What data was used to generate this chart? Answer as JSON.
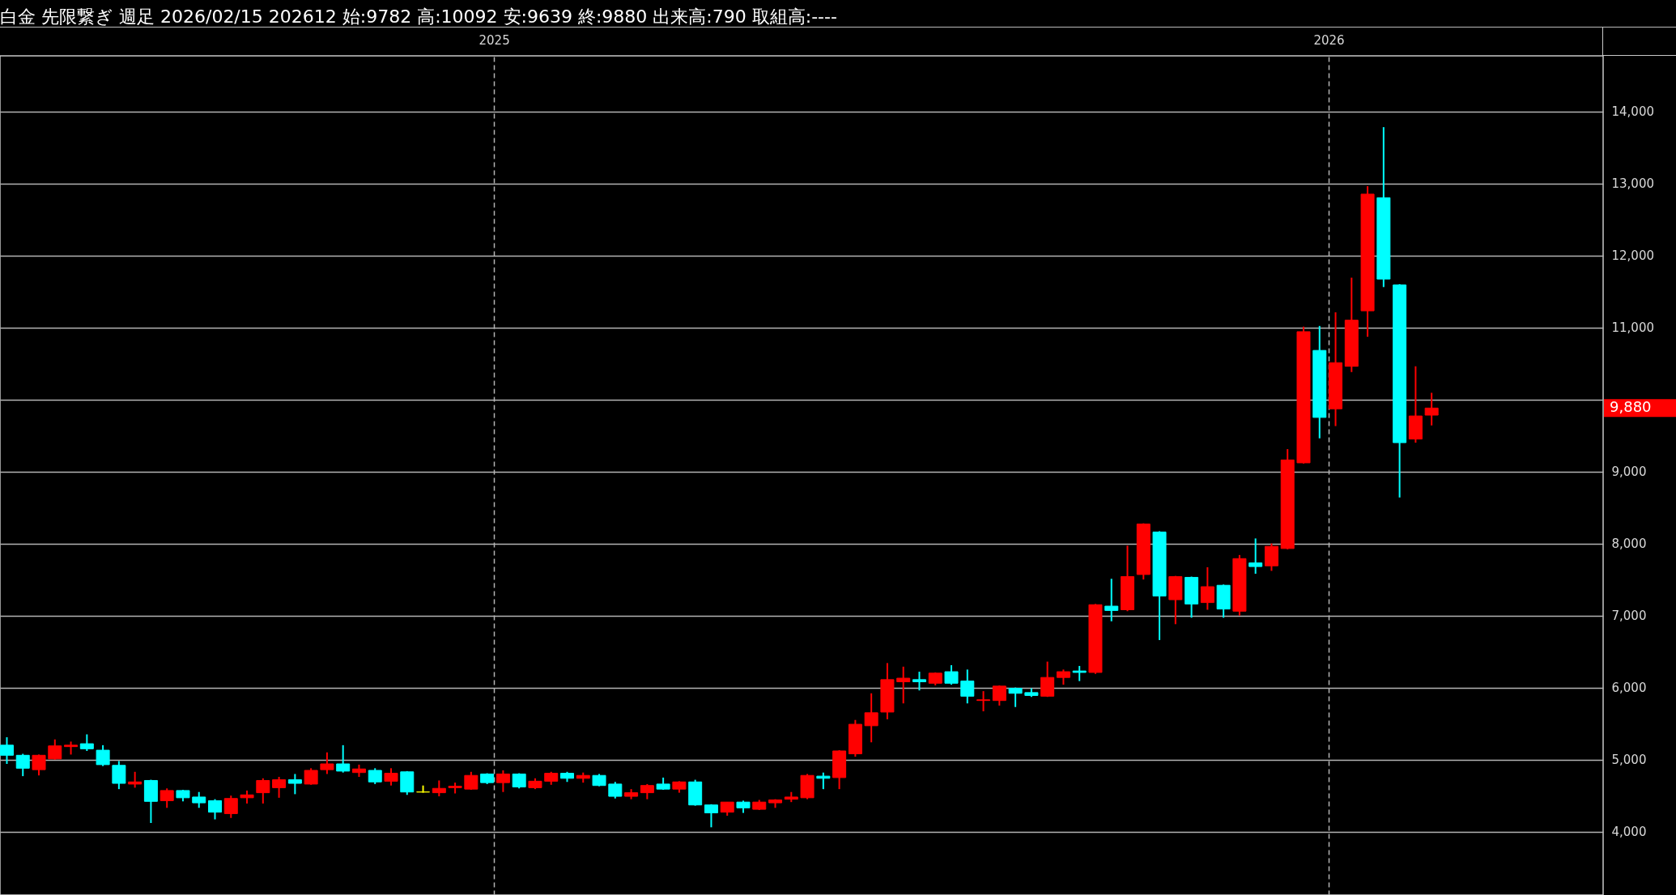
{
  "chart_data": {
    "type": "candlestick",
    "title": "白金 先限繋ぎ 週足 2026/02/15 202612 始:9782 高:10092 安:9639 終:9880 出来高:790 取組高:----",
    "x": [
      "2024-06-02",
      "2024-06-09",
      "2024-06-16",
      "2024-06-23",
      "2024-06-30",
      "2024-07-07",
      "2024-07-14",
      "2024-07-21",
      "2024-07-28",
      "2024-08-04",
      "2024-08-11",
      "2024-08-18",
      "2024-08-25",
      "2024-09-01",
      "2024-09-08",
      "2024-09-15",
      "2024-09-22",
      "2024-09-29",
      "2024-10-06",
      "2024-10-13",
      "2024-10-20",
      "2024-10-27",
      "2024-11-03",
      "2024-11-10",
      "2024-11-17",
      "2024-11-24",
      "2024-12-01",
      "2024-12-08",
      "2024-12-15",
      "2024-12-22",
      "2024-12-29",
      "2025-01-05",
      "2025-01-12",
      "2025-01-19",
      "2025-01-26",
      "2025-02-02",
      "2025-02-09",
      "2025-02-16",
      "2025-02-23",
      "2025-03-02",
      "2025-03-09",
      "2025-03-16",
      "2025-03-23",
      "2025-03-30",
      "2025-04-06",
      "2025-04-13",
      "2025-04-20",
      "2025-04-27",
      "2025-05-04",
      "2025-05-11",
      "2025-05-18",
      "2025-05-25",
      "2025-06-01",
      "2025-06-08",
      "2025-06-15",
      "2025-06-22",
      "2025-06-29",
      "2025-07-06",
      "2025-07-13",
      "2025-07-20",
      "2025-07-27",
      "2025-08-03",
      "2025-08-10",
      "2025-08-17",
      "2025-08-24",
      "2025-08-31",
      "2025-09-07",
      "2025-09-14",
      "2025-09-21",
      "2025-09-28",
      "2025-10-05",
      "2025-10-12",
      "2025-10-19",
      "2025-10-26",
      "2025-11-02",
      "2025-11-09",
      "2025-11-16",
      "2025-11-23",
      "2025-11-30",
      "2025-12-07",
      "2025-12-14",
      "2025-12-21",
      "2025-12-28",
      "2026-01-04",
      "2026-01-11",
      "2026-01-18",
      "2026-01-25",
      "2026-02-01",
      "2026-02-08",
      "2026-02-15"
    ],
    "ohlc": [
      [
        5200,
        5310,
        4940,
        5060
      ],
      [
        5060,
        5080,
        4770,
        4880
      ],
      [
        4860,
        5070,
        4780,
        5060
      ],
      [
        5010,
        5280,
        5000,
        5190
      ],
      [
        5180,
        5250,
        5070,
        5200
      ],
      [
        5220,
        5350,
        5120,
        5150
      ],
      [
        5130,
        5200,
        4910,
        4930
      ],
      [
        4920,
        4980,
        4590,
        4670
      ],
      [
        4660,
        4830,
        4610,
        4690
      ],
      [
        4710,
        4720,
        4120,
        4420
      ],
      [
        4430,
        4600,
        4330,
        4570
      ],
      [
        4570,
        4580,
        4420,
        4470
      ],
      [
        4480,
        4550,
        4330,
        4400
      ],
      [
        4430,
        4450,
        4170,
        4270
      ],
      [
        4250,
        4500,
        4190,
        4460
      ],
      [
        4470,
        4570,
        4390,
        4510
      ],
      [
        4540,
        4740,
        4390,
        4710
      ],
      [
        4610,
        4760,
        4470,
        4720
      ],
      [
        4720,
        4800,
        4520,
        4670
      ],
      [
        4660,
        4880,
        4650,
        4850
      ],
      [
        4860,
        5100,
        4800,
        4940
      ],
      [
        4940,
        5200,
        4820,
        4840
      ],
      [
        4820,
        4930,
        4760,
        4870
      ],
      [
        4850,
        4880,
        4660,
        4690
      ],
      [
        4700,
        4880,
        4640,
        4810
      ],
      [
        4830,
        4840,
        4510,
        4550
      ],
      [
        4550,
        4640,
        4540,
        4550
      ],
      [
        4540,
        4710,
        4490,
        4600
      ],
      [
        4610,
        4680,
        4530,
        4630
      ],
      [
        4590,
        4830,
        4580,
        4780
      ],
      [
        4800,
        4810,
        4660,
        4680
      ],
      [
        4680,
        4850,
        4550,
        4800
      ],
      [
        4800,
        4810,
        4600,
        4620
      ],
      [
        4610,
        4740,
        4590,
        4700
      ],
      [
        4700,
        4830,
        4650,
        4810
      ],
      [
        4810,
        4830,
        4690,
        4740
      ],
      [
        4740,
        4820,
        4680,
        4780
      ],
      [
        4780,
        4800,
        4630,
        4640
      ],
      [
        4660,
        4690,
        4460,
        4490
      ],
      [
        4490,
        4590,
        4450,
        4540
      ],
      [
        4540,
        4660,
        4450,
        4640
      ],
      [
        4660,
        4750,
        4580,
        4590
      ],
      [
        4590,
        4700,
        4540,
        4690
      ],
      [
        4690,
        4720,
        4360,
        4370
      ],
      [
        4370,
        4380,
        4060,
        4260
      ],
      [
        4270,
        4410,
        4220,
        4410
      ],
      [
        4410,
        4430,
        4260,
        4330
      ],
      [
        4310,
        4440,
        4300,
        4410
      ],
      [
        4400,
        4450,
        4330,
        4440
      ],
      [
        4450,
        4550,
        4410,
        4480
      ],
      [
        4470,
        4800,
        4450,
        4780
      ],
      [
        4770,
        4820,
        4590,
        4740
      ],
      [
        4750,
        5130,
        4590,
        5120
      ],
      [
        5080,
        5550,
        5040,
        5490
      ],
      [
        5470,
        5920,
        5240,
        5650
      ],
      [
        5660,
        6340,
        5560,
        6110
      ],
      [
        6080,
        6290,
        5780,
        6130
      ],
      [
        6110,
        6220,
        5960,
        6080
      ],
      [
        6060,
        6210,
        6030,
        6200
      ],
      [
        6220,
        6310,
        6040,
        6060
      ],
      [
        6090,
        6250,
        5780,
        5880
      ],
      [
        5820,
        5950,
        5670,
        5830
      ],
      [
        5820,
        6030,
        5750,
        6020
      ],
      [
        5990,
        6000,
        5730,
        5920
      ],
      [
        5930,
        5990,
        5870,
        5890
      ],
      [
        5880,
        6360,
        5870,
        6140
      ],
      [
        6140,
        6250,
        6040,
        6220
      ],
      [
        6230,
        6300,
        6090,
        6210
      ],
      [
        6210,
        7160,
        6190,
        7150
      ],
      [
        7130,
        7510,
        6920,
        7070
      ],
      [
        7080,
        7970,
        7060,
        7540
      ],
      [
        7570,
        8280,
        7500,
        8270
      ],
      [
        8160,
        8170,
        6660,
        7270
      ],
      [
        7220,
        7550,
        6880,
        7540
      ],
      [
        7530,
        7540,
        6970,
        7160
      ],
      [
        7180,
        7670,
        7080,
        7400
      ],
      [
        7420,
        7430,
        6970,
        7090
      ],
      [
        7060,
        7840,
        7000,
        7790
      ],
      [
        7730,
        8070,
        7580,
        7680
      ],
      [
        7690,
        8000,
        7620,
        7960
      ],
      [
        7930,
        9310,
        7920,
        9160
      ],
      [
        9120,
        11010,
        9110,
        10940
      ],
      [
        10680,
        11020,
        9460,
        9750
      ],
      [
        9870,
        11210,
        9630,
        10510
      ],
      [
        10460,
        11690,
        10380,
        11100
      ],
      [
        11230,
        12960,
        10870,
        12850
      ],
      [
        12800,
        13780,
        11560,
        11670
      ],
      [
        11590,
        11600,
        8640,
        9400
      ],
      [
        9450,
        10460,
        9400,
        9770
      ],
      [
        9782,
        10092,
        9639,
        9880
      ]
    ],
    "colors": [
      "#00ffff",
      "#00ffff",
      "#ff0000",
      "#ff0000",
      "#ff0000",
      "#00ffff",
      "#00ffff",
      "#00ffff",
      "#ff0000",
      "#00ffff",
      "#ff0000",
      "#00ffff",
      "#00ffff",
      "#00ffff",
      "#ff0000",
      "#ff0000",
      "#ff0000",
      "#ff0000",
      "#00ffff",
      "#ff0000",
      "#ff0000",
      "#00ffff",
      "#ff0000",
      "#00ffff",
      "#ff0000",
      "#00ffff",
      "#ffff00",
      "#ff0000",
      "#ff0000",
      "#ff0000",
      "#00ffff",
      "#ff0000",
      "#00ffff",
      "#ff0000",
      "#ff0000",
      "#00ffff",
      "#ff0000",
      "#00ffff",
      "#00ffff",
      "#ff0000",
      "#ff0000",
      "#00ffff",
      "#ff0000",
      "#00ffff",
      "#00ffff",
      "#ff0000",
      "#00ffff",
      "#ff0000",
      "#ff0000",
      "#ff0000",
      "#ff0000",
      "#00ffff",
      "#ff0000",
      "#ff0000",
      "#ff0000",
      "#ff0000",
      "#ff0000",
      "#00ffff",
      "#ff0000",
      "#00ffff",
      "#00ffff",
      "#ff0000",
      "#ff0000",
      "#00ffff",
      "#00ffff",
      "#ff0000",
      "#ff0000",
      "#00ffff",
      "#ff0000",
      "#00ffff",
      "#ff0000",
      "#ff0000",
      "#00ffff",
      "#ff0000",
      "#00ffff",
      "#ff0000",
      "#00ffff",
      "#ff0000",
      "#00ffff",
      "#ff0000",
      "#ff0000",
      "#ff0000",
      "#00ffff",
      "#ff0000",
      "#ff0000",
      "#ff0000",
      "#00ffff",
      "#00ffff",
      "#ff0000",
      "#ff0000"
    ],
    "xlim": [
      "2024-05-30",
      "2026-05-01"
    ],
    "xticks": [
      "2025",
      "2026"
    ],
    "ylim": [
      3120,
      14770
    ],
    "yticks": [
      {
        "value": 4000,
        "label": "4,000"
      },
      {
        "value": 5000,
        "label": "5,000"
      },
      {
        "value": 6000,
        "label": "6,000"
      },
      {
        "value": 7000,
        "label": "7,000"
      },
      {
        "value": 8000,
        "label": "8,000"
      },
      {
        "value": 9000,
        "label": "9,000"
      },
      {
        "value": 10000,
        "label": null
      },
      {
        "value": 11000,
        "label": "11,000"
      },
      {
        "value": 12000,
        "label": "12,000"
      },
      {
        "value": 13000,
        "label": "13,000"
      },
      {
        "value": 14000,
        "label": "14,000"
      }
    ],
    "grid": true,
    "annotations": [
      "9,880"
    ]
  }
}
